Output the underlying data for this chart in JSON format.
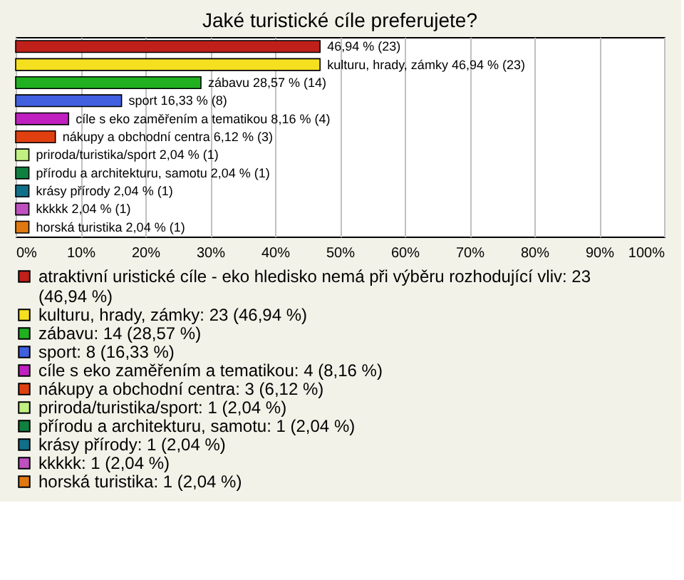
{
  "chart_data": {
    "type": "bar",
    "orientation": "horizontal",
    "stacked": true,
    "title": "Jaké turistické cíle preferujete?",
    "categories": [
      null,
      null,
      null,
      null,
      null,
      null,
      null,
      null,
      null,
      null,
      null
    ],
    "series": [
      {
        "name": "atraktivní uristické cíle - eko hledisko nemá při výběru rozhodující vliv: 23 (46,94 %)",
        "color": "#c0201a",
        "values": [
          46.94,
          null,
          null,
          null,
          null,
          null,
          null,
          null,
          null,
          null,
          null
        ],
        "value_labels": [
          "46,94 % (23)",
          null,
          null,
          null,
          null,
          null,
          null,
          null,
          null,
          null,
          null
        ]
      },
      {
        "name": "kulturu, hrady, zámky: 23 (46,94 %)",
        "color": "#f5e020",
        "values": [
          null,
          46.94,
          null,
          null,
          null,
          null,
          null,
          null,
          null,
          null,
          null
        ],
        "value_labels": [
          null,
          "kulturu, hrady, zámky 46,94 % (23)",
          null,
          null,
          null,
          null,
          null,
          null,
          null,
          null,
          null
        ]
      },
      {
        "name": "zábavu: 14 (28,57 %)",
        "color": "#20b020",
        "values": [
          null,
          null,
          28.57,
          null,
          null,
          null,
          null,
          null,
          null,
          null,
          null
        ],
        "value_labels": [
          null,
          null,
          "zábavu 28,57 % (14)",
          null,
          null,
          null,
          null,
          null,
          null,
          null,
          null
        ]
      },
      {
        "name": "sport: 8 (16,33 %)",
        "color": "#4060e0",
        "values": [
          null,
          null,
          null,
          16.33,
          null,
          null,
          null,
          null,
          null,
          null,
          null
        ],
        "value_labels": [
          null,
          null,
          null,
          "sport 16,33 % (8)",
          null,
          null,
          null,
          null,
          null,
          null,
          null
        ]
      },
      {
        "name": "cíle s eko zaměřením a tematikou: 4 (8,16 %)",
        "color": "#c020c0",
        "values": [
          null,
          null,
          null,
          null,
          8.16,
          null,
          null,
          null,
          null,
          null,
          null
        ],
        "value_labels": [
          null,
          null,
          null,
          null,
          "cíle s eko zaměřením a tematikou 8,16 % (4)",
          null,
          null,
          null,
          null,
          null,
          null
        ]
      },
      {
        "name": "nákupy a obchodní centra: 3 (6,12 %)",
        "color": "#e04010",
        "values": [
          null,
          null,
          null,
          null,
          null,
          6.12,
          null,
          null,
          null,
          null,
          null
        ],
        "value_labels": [
          null,
          null,
          null,
          null,
          null,
          "nákupy a obchodní centra 6,12 % (3)",
          null,
          null,
          null,
          null,
          null
        ]
      },
      {
        "name": "priroda/turistika/sport: 1 (2,04 %)",
        "color": "#c0f080",
        "values": [
          null,
          null,
          null,
          null,
          null,
          null,
          2.04,
          null,
          null,
          null,
          null
        ],
        "value_labels": [
          null,
          null,
          null,
          null,
          null,
          null,
          "priroda/turistika/sport 2,04 % (1)",
          null,
          null,
          null,
          null
        ]
      },
      {
        "name": "přírodu a architekturu, samotu: 1 (2,04 %)",
        "color": "#108040",
        "values": [
          null,
          null,
          null,
          null,
          null,
          null,
          null,
          2.04,
          null,
          null,
          null
        ],
        "value_labels": [
          null,
          null,
          null,
          null,
          null,
          null,
          null,
          "přírodu a architekturu, samotu 2,04 % (1)",
          null,
          null,
          null
        ]
      },
      {
        "name": "krásy přírody: 1 (2,04 %)",
        "color": "#10708a",
        "values": [
          null,
          null,
          null,
          null,
          null,
          null,
          null,
          null,
          2.04,
          null,
          null
        ],
        "value_labels": [
          null,
          null,
          null,
          null,
          null,
          null,
          null,
          null,
          "krásy přírody 2,04 % (1)",
          null,
          null
        ]
      },
      {
        "name": "kkkkk: 1 (2,04 %)",
        "color": "#c050c0",
        "values": [
          null,
          null,
          null,
          null,
          null,
          null,
          null,
          null,
          null,
          2.04,
          null
        ],
        "value_labels": [
          null,
          null,
          null,
          null,
          null,
          null,
          null,
          null,
          null,
          "kkkkk 2,04 % (1)",
          null
        ]
      },
      {
        "name": "horská turistika: 1 (2,04 %)",
        "color": "#e07810",
        "values": [
          null,
          null,
          null,
          null,
          null,
          null,
          null,
          null,
          null,
          null,
          2.04
        ],
        "value_labels": [
          null,
          null,
          null,
          null,
          null,
          null,
          null,
          null,
          null,
          null,
          "horská turistika 2,04 % (1)"
        ]
      }
    ],
    "xlim": [
      0,
      100
    ],
    "xticks": [
      {
        "value": 0,
        "label": "0%"
      },
      {
        "value": 10,
        "label": "10%"
      },
      {
        "value": 20,
        "label": "20%"
      },
      {
        "value": 30,
        "label": "30%"
      },
      {
        "value": 40,
        "label": "40%"
      },
      {
        "value": 50,
        "label": "50%"
      },
      {
        "value": 60,
        "label": "60%"
      },
      {
        "value": 70,
        "label": "70%"
      },
      {
        "value": 80,
        "label": "80%"
      },
      {
        "value": 90,
        "label": "90%"
      },
      {
        "value": 100,
        "label": "100%"
      }
    ],
    "grid": "x",
    "legend": "bottom",
    "tick_labels": "x"
  }
}
